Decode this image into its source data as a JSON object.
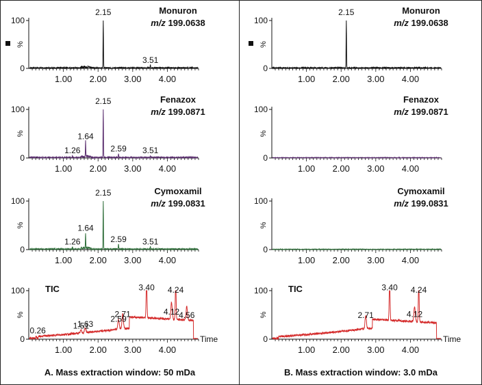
{
  "colors": {
    "black": "#111111",
    "purple": "#5a2d6e",
    "green": "#2f6e3a",
    "red": "#d42a2a"
  },
  "axis": {
    "y_max_label": "100",
    "y_zero_label": "0",
    "y_unit": "%",
    "x_ticks": [
      "1.00",
      "2.00",
      "3.00",
      "4.00"
    ],
    "time_label": "Time"
  },
  "captions": [
    "A. Mass extraction window: 50 mDa",
    "B. Mass extraction window: 3.0 mDa"
  ],
  "chart_data": [
    {
      "type": "line",
      "panel": "A",
      "row": 1,
      "compound": "Monuron",
      "mz_prefix": "m/z",
      "mz_value": "199.0638",
      "color": "black",
      "xlim": [
        0,
        4.9
      ],
      "ylim": [
        0,
        100
      ],
      "peaks": [
        {
          "x": 2.15,
          "y": 100,
          "label": "2.15"
        },
        {
          "x": 3.51,
          "y": 6,
          "label": "3.51"
        }
      ]
    },
    {
      "type": "line",
      "panel": "A",
      "row": 2,
      "compound": "Fenazox",
      "mz_prefix": "m/z",
      "mz_value": "199.0871",
      "color": "purple",
      "xlim": [
        0,
        4.9
      ],
      "ylim": [
        0,
        100
      ],
      "peaks": [
        {
          "x": 1.26,
          "y": 4,
          "label": "1.26"
        },
        {
          "x": 1.64,
          "y": 33,
          "label": "1.64"
        },
        {
          "x": 2.15,
          "y": 100,
          "label": "2.15"
        },
        {
          "x": 2.59,
          "y": 8,
          "label": "2.59"
        },
        {
          "x": 3.51,
          "y": 4,
          "label": "3.51"
        }
      ]
    },
    {
      "type": "line",
      "panel": "A",
      "row": 3,
      "compound": "Cymoxamil",
      "mz_prefix": "m/z",
      "mz_value": "199.0831",
      "color": "green",
      "xlim": [
        0,
        4.9
      ],
      "ylim": [
        0,
        100
      ],
      "peaks": [
        {
          "x": 1.26,
          "y": 5,
          "label": "1.26"
        },
        {
          "x": 1.64,
          "y": 33,
          "label": "1.64"
        },
        {
          "x": 2.15,
          "y": 100,
          "label": "2.15"
        },
        {
          "x": 2.59,
          "y": 10,
          "label": "2.59"
        },
        {
          "x": 3.51,
          "y": 5,
          "label": "3.51"
        }
      ]
    },
    {
      "type": "line",
      "panel": "A",
      "row": 4,
      "compound": "TIC",
      "color": "red",
      "xlim": [
        0,
        4.9
      ],
      "ylim": [
        0,
        100
      ],
      "peaks": [
        {
          "x": 0.26,
          "y": 6,
          "label": "0.26"
        },
        {
          "x": 1.51,
          "y": 16,
          "label": "1.51"
        },
        {
          "x": 1.63,
          "y": 20,
          "label": "1.63"
        },
        {
          "x": 2.59,
          "y": 30,
          "label": "2.59"
        },
        {
          "x": 2.71,
          "y": 40,
          "label": "2.71"
        },
        {
          "x": 3.4,
          "y": 95,
          "label": "3.40"
        },
        {
          "x": 4.12,
          "y": 45,
          "label": "4.12"
        },
        {
          "x": 4.24,
          "y": 90,
          "label": "4.24"
        },
        {
          "x": 4.56,
          "y": 38,
          "label": "4.56"
        }
      ]
    },
    {
      "type": "line",
      "panel": "B",
      "row": 1,
      "compound": "Monuron",
      "mz_prefix": "m/z",
      "mz_value": "199.0638",
      "color": "black",
      "xlim": [
        0,
        4.9
      ],
      "ylim": [
        0,
        100
      ],
      "peaks": [
        {
          "x": 2.15,
          "y": 100,
          "label": "2.15"
        }
      ]
    },
    {
      "type": "line",
      "panel": "B",
      "row": 2,
      "compound": "Fenazox",
      "mz_prefix": "m/z",
      "mz_value": "199.0871",
      "color": "purple",
      "xlim": [
        0,
        4.9
      ],
      "ylim": [
        0,
        100
      ],
      "peaks": []
    },
    {
      "type": "line",
      "panel": "B",
      "row": 3,
      "compound": "Cymoxamil",
      "mz_prefix": "m/z",
      "mz_value": "199.0831",
      "color": "green",
      "xlim": [
        0,
        4.9
      ],
      "ylim": [
        0,
        100
      ],
      "peaks": []
    },
    {
      "type": "line",
      "panel": "B",
      "row": 4,
      "compound": "TIC",
      "color": "red",
      "xlim": [
        0,
        4.9
      ],
      "ylim": [
        0,
        100
      ],
      "peaks": [
        {
          "x": 2.71,
          "y": 38,
          "label": "2.71"
        },
        {
          "x": 3.4,
          "y": 95,
          "label": "3.40"
        },
        {
          "x": 4.12,
          "y": 40,
          "label": "4.12"
        },
        {
          "x": 4.24,
          "y": 90,
          "label": "4.24"
        }
      ]
    }
  ]
}
